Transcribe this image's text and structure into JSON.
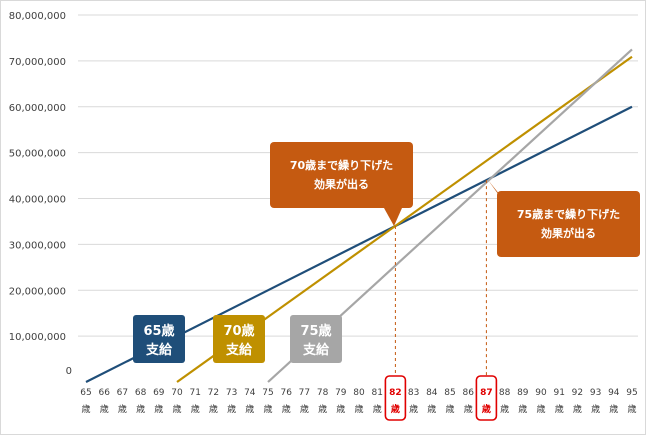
{
  "chart_data": {
    "type": "line",
    "y_ticks": [
      "80,000,000",
      "70,000,000",
      "60,000,000",
      "50,000,000",
      "40,000,000",
      "30,000,000",
      "20,000,000",
      "10,000,000",
      "0"
    ],
    "ylim": [
      0,
      80000000
    ],
    "x": [
      65,
      66,
      67,
      68,
      69,
      70,
      71,
      72,
      73,
      74,
      75,
      76,
      77,
      78,
      79,
      80,
      81,
      82,
      83,
      84,
      85,
      86,
      87,
      88,
      89,
      90,
      91,
      92,
      93,
      94,
      95
    ],
    "x_tick_labels": [
      "65",
      "66",
      "67",
      "68",
      "69",
      "70",
      "71",
      "72",
      "73",
      "74",
      "75",
      "76",
      "77",
      "78",
      "79",
      "80",
      "81",
      "82",
      "83",
      "84",
      "85",
      "86",
      "87",
      "88",
      "89",
      "90",
      "91",
      "92",
      "93",
      "94",
      "95"
    ],
    "x_suffix": "歳",
    "grid": "horizontal",
    "series": [
      {
        "color": "#1f4e79",
        "start_age": 65,
        "points": [
          [
            65,
            0
          ],
          [
            95,
            60000000
          ]
        ]
      },
      {
        "color": "#bf9000",
        "start_age": 70,
        "points": [
          [
            70,
            0
          ],
          [
            95,
            70900000
          ]
        ]
      },
      {
        "color": "#a6a6a6",
        "start_age": 75,
        "points": [
          [
            75,
            0
          ],
          [
            95,
            72500000
          ]
        ]
      }
    ],
    "series_labels": [
      {
        "line1": "65歳",
        "line2": "支給",
        "color": "#1f4e79"
      },
      {
        "line1": "70歳",
        "line2": "支給",
        "color": "#bf9000"
      },
      {
        "line1": "75歳",
        "line2": "支給",
        "color": "#a6a6a6"
      }
    ],
    "annotations": [
      {
        "line1": "70歳まで繰り下げた",
        "line2": "効果が出る",
        "age": 82,
        "value": 34000000,
        "color": "#c55a11"
      },
      {
        "line1": "75歳まで繰り下げた",
        "line2": "効果が出る",
        "age": 87,
        "value": 44000000,
        "color": "#c55a11"
      }
    ],
    "highlighted_ages": [
      82,
      87
    ],
    "highlight_color": "#e00000"
  }
}
